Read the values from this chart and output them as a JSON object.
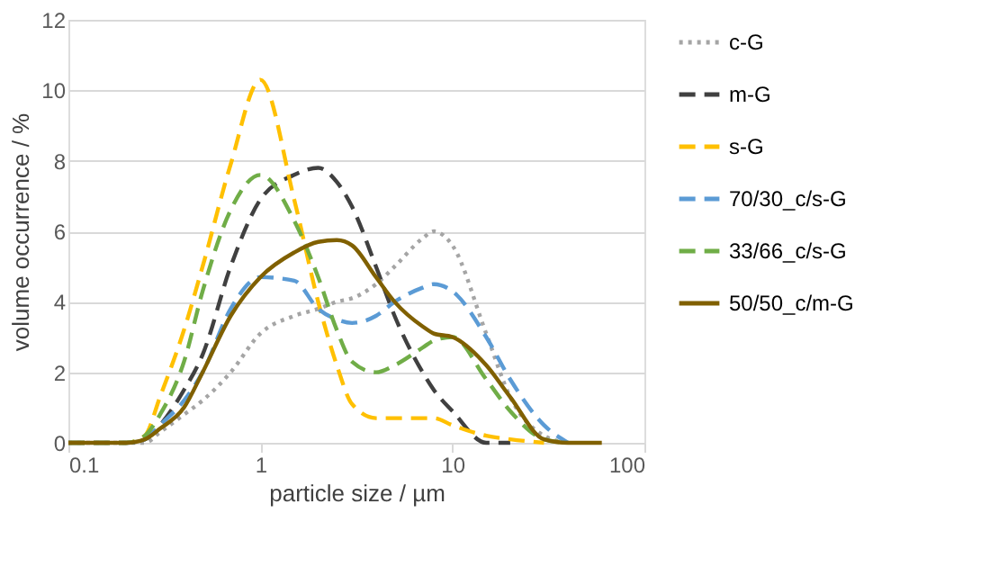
{
  "chart_data": {
    "type": "line",
    "xlabel": "particle size / µm",
    "ylabel": "volume occurrence / %",
    "x": [
      0.1,
      0.2,
      0.25,
      0.3,
      0.4,
      0.5,
      0.7,
      1,
      1.5,
      2,
      2.5,
      3,
      4,
      5,
      7,
      8,
      10,
      15,
      20,
      30,
      40,
      60
    ],
    "log": "x",
    "xlim": [
      0.1,
      100
    ],
    "xticks": [
      0.1,
      1,
      10,
      100
    ],
    "ylim": [
      0,
      12
    ],
    "yticks": [
      0,
      2,
      4,
      6,
      8,
      10,
      12
    ],
    "grid": "y",
    "legend": "right",
    "marker": "none",
    "series": [
      {
        "name": "c-G",
        "color": "#a5a5a5",
        "line_style": "dotted",
        "values": [
          0,
          0,
          0,
          0.3,
          0.8,
          1.2,
          2.0,
          3.1,
          3.6,
          3.8,
          4.0,
          4.1,
          4.5,
          5.0,
          5.8,
          6.0,
          5.6,
          3.1,
          1.3,
          0.2,
          0,
          null
        ]
      },
      {
        "name": "m-G",
        "color": "#404040",
        "line_style": "dashed",
        "values": [
          0,
          0,
          0.1,
          0.5,
          1.5,
          2.5,
          5.0,
          6.9,
          7.6,
          7.8,
          7.4,
          6.7,
          5.0,
          3.6,
          2.0,
          1.5,
          0.9,
          0,
          0,
          null,
          null,
          null
        ]
      },
      {
        "name": "s-G",
        "color": "#ffc000",
        "line_style": "dashed",
        "values": [
          0,
          0,
          0.2,
          1.3,
          3.2,
          5.0,
          7.9,
          10.3,
          6.9,
          4.0,
          2.2,
          1.1,
          0.7,
          0.7,
          0.7,
          0.7,
          0.5,
          0.2,
          0.1,
          0,
          null,
          null
        ]
      },
      {
        "name": "70/30_c/s-G",
        "color": "#5b9bd5",
        "line_style": "dashed",
        "values": [
          0,
          0,
          0.1,
          0.5,
          1.2,
          2.0,
          3.8,
          4.7,
          4.6,
          3.8,
          3.5,
          3.4,
          3.6,
          4.0,
          4.4,
          4.5,
          4.3,
          3.0,
          1.8,
          0.5,
          0,
          null
        ]
      },
      {
        "name": "33/66_c/s-G",
        "color": "#70ad47",
        "line_style": "dashed",
        "values": [
          0,
          0,
          0.2,
          0.8,
          2.3,
          4.3,
          6.6,
          7.6,
          6.3,
          4.7,
          3.2,
          2.3,
          2.0,
          2.2,
          2.7,
          2.9,
          3.0,
          1.8,
          0.9,
          0.1,
          0,
          null
        ]
      },
      {
        "name": "50/50_c/m-G",
        "color": "#806000",
        "line_style": "solid",
        "values": [
          0,
          0,
          0.1,
          0.4,
          1.0,
          2.0,
          3.6,
          4.7,
          5.4,
          5.7,
          5.75,
          5.6,
          4.7,
          4.0,
          3.3,
          3.1,
          3.0,
          2.2,
          1.3,
          0.1,
          0,
          0
        ]
      }
    ]
  }
}
